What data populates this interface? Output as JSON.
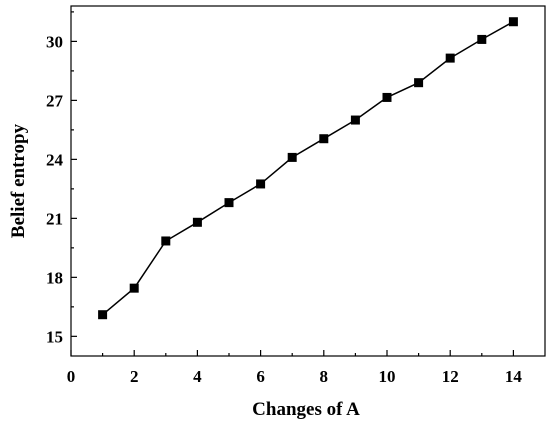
{
  "chart_data": {
    "type": "line",
    "title": "",
    "xlabel": "Changes of A",
    "ylabel": "Belief entropy",
    "xlim": [
      0,
      15
    ],
    "ylim": [
      14,
      31.8
    ],
    "xticks": [
      0,
      2,
      4,
      6,
      8,
      10,
      12,
      14
    ],
    "yticks": [
      15,
      18,
      21,
      24,
      27,
      30
    ],
    "grid": false,
    "legend": "none",
    "marker": "square",
    "color": "#000000",
    "series": [
      {
        "x": [
          1,
          2,
          3,
          4,
          5,
          6,
          7,
          8,
          9,
          10,
          11,
          12,
          13,
          14
        ],
        "y": [
          16.1,
          17.45,
          19.85,
          20.8,
          21.8,
          22.75,
          24.1,
          25.05,
          26.0,
          27.15,
          27.9,
          29.15,
          30.1,
          31.0
        ]
      }
    ]
  }
}
